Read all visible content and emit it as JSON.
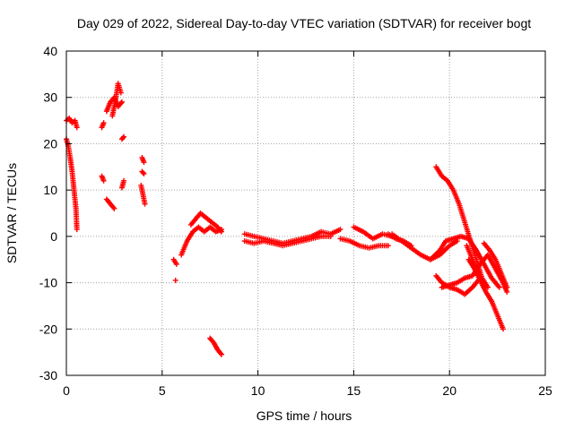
{
  "chart_data": {
    "type": "scatter",
    "title": "Day 029 of 2022, Sidereal Day-to-day VTEC variation (SDTVAR) for receiver bogt",
    "xlabel": "GPS time / hours",
    "ylabel": "SDTVAR / TECUs",
    "xlim": [
      0,
      25
    ],
    "ylim": [
      -30,
      40
    ],
    "xticks": [
      0,
      5,
      10,
      15,
      20,
      25
    ],
    "yticks": [
      -30,
      -20,
      -10,
      0,
      10,
      20,
      30,
      40
    ],
    "xtick_labels": [
      "0",
      "5",
      "10",
      "15",
      "20",
      "25"
    ],
    "ytick_labels": [
      "-30",
      "-20",
      "-10",
      "0",
      "10",
      "20",
      "30",
      "40"
    ],
    "grid": true,
    "marker": "+",
    "color": "#ff0000",
    "series": [
      {
        "name": "s01",
        "x": [
          0.0,
          0.15,
          0.3,
          0.45,
          0.55
        ],
        "y": [
          25.0,
          25.5,
          24.5,
          25.0,
          23.5
        ]
      },
      {
        "name": "s02",
        "x": [
          0.0,
          0.1,
          0.2,
          0.3,
          0.4,
          0.5,
          0.55
        ],
        "y": [
          21.0,
          19.5,
          17.0,
          14.0,
          10.0,
          6.0,
          1.5
        ]
      },
      {
        "name": "s03",
        "x": [
          1.85,
          1.95
        ],
        "y": [
          23.5,
          24.5
        ]
      },
      {
        "name": "s04",
        "x": [
          1.85,
          1.95
        ],
        "y": [
          13.0,
          12.0
        ]
      },
      {
        "name": "s05",
        "x": [
          2.1,
          2.3,
          2.5
        ],
        "y": [
          8.0,
          7.0,
          6.0
        ]
      },
      {
        "name": "s06",
        "x": [
          2.1,
          2.3,
          2.5,
          2.7,
          2.9
        ],
        "y": [
          27.0,
          29.0,
          30.0,
          28.0,
          29.0
        ]
      },
      {
        "name": "s07",
        "x": [
          2.4,
          2.55,
          2.7,
          2.85
        ],
        "y": [
          26.0,
          29.0,
          33.0,
          31.0
        ]
      },
      {
        "name": "s08",
        "x": [
          2.9,
          3.0
        ],
        "y": [
          21.0,
          21.5
        ]
      },
      {
        "name": "s09",
        "x": [
          2.9,
          3.0
        ],
        "y": [
          10.5,
          12.0
        ]
      },
      {
        "name": "s10",
        "x": [
          3.95,
          4.05
        ],
        "y": [
          17.0,
          16.0
        ]
      },
      {
        "name": "s11",
        "x": [
          3.95,
          4.05
        ],
        "y": [
          14.0,
          13.5
        ]
      },
      {
        "name": "s12",
        "x": [
          3.9,
          4.0,
          4.1
        ],
        "y": [
          11.0,
          9.0,
          7.0
        ]
      },
      {
        "name": "s13",
        "x": [
          5.6,
          5.75
        ],
        "y": [
          -5.0,
          -6.0
        ]
      },
      {
        "name": "s14",
        "x": [
          5.7
        ],
        "y": [
          -9.5
        ]
      },
      {
        "name": "s15",
        "x": [
          6.0,
          6.3,
          6.6,
          6.9,
          7.2,
          7.5,
          7.8,
          8.1
        ],
        "y": [
          -4.0,
          -1.0,
          1.0,
          2.0,
          1.0,
          2.0,
          1.0,
          1.5
        ]
      },
      {
        "name": "s16",
        "x": [
          6.5,
          6.8,
          7.0,
          7.3,
          7.6,
          7.9,
          8.1
        ],
        "y": [
          2.5,
          4.0,
          5.0,
          4.0,
          3.0,
          2.0,
          1.0
        ]
      },
      {
        "name": "s17",
        "x": [
          7.5,
          7.7,
          7.9,
          8.1
        ],
        "y": [
          -22.0,
          -23.0,
          -24.5,
          -25.5
        ]
      },
      {
        "name": "s18",
        "x": [
          9.3,
          9.8,
          10.3,
          10.8,
          11.3,
          11.8,
          12.3,
          12.8,
          13.3,
          13.8,
          14.3
        ],
        "y": [
          0.5,
          0.0,
          -0.5,
          -1.0,
          -1.5,
          -1.0,
          -0.5,
          0.0,
          1.0,
          0.5,
          1.5
        ]
      },
      {
        "name": "s19",
        "x": [
          9.3,
          9.8,
          10.3,
          10.8,
          11.3,
          11.8,
          12.3,
          12.8,
          13.3,
          13.8
        ],
        "y": [
          -1.0,
          -1.5,
          -1.0,
          -1.5,
          -2.0,
          -1.5,
          -1.0,
          -0.5,
          0.0,
          0.0
        ]
      },
      {
        "name": "s20",
        "x": [
          14.3,
          14.8,
          15.3,
          15.8,
          16.3,
          16.8
        ],
        "y": [
          -0.5,
          -1.0,
          -2.0,
          -2.5,
          -2.0,
          -2.0
        ]
      },
      {
        "name": "s21",
        "x": [
          15.0,
          15.5,
          16.0,
          16.5,
          17.0
        ],
        "y": [
          2.0,
          1.0,
          -0.5,
          0.5,
          0.0
        ]
      },
      {
        "name": "s22",
        "x": [
          17.0,
          17.5,
          18.0,
          18.5,
          19.0,
          19.5,
          20.0,
          20.4
        ],
        "y": [
          0.5,
          -1.0,
          -2.5,
          -4.0,
          -5.0,
          -4.0,
          -2.0,
          -1.0
        ]
      },
      {
        "name": "s23",
        "x": [
          16.8,
          17.2,
          17.6,
          18.0
        ],
        "y": [
          0.5,
          -0.5,
          -1.0,
          -2.0
        ]
      },
      {
        "name": "s24",
        "x": [
          19.0,
          19.5,
          19.8,
          20.2,
          20.6,
          21.0,
          21.4,
          21.8,
          22.2,
          22.6
        ],
        "y": [
          -5.0,
          -3.0,
          -1.0,
          -0.5,
          0.0,
          -0.5,
          -3.0,
          -6.0,
          -9.0,
          -11.0
        ]
      },
      {
        "name": "s25",
        "x": [
          19.3,
          19.6,
          19.9,
          20.2,
          20.5,
          20.8,
          21.1,
          21.4,
          21.7,
          22.0
        ],
        "y": [
          15.0,
          13.0,
          12.0,
          10.0,
          7.0,
          3.0,
          -1.0,
          -5.0,
          -9.0,
          -11.0
        ]
      },
      {
        "name": "s26",
        "x": [
          19.3,
          19.6,
          20.0,
          20.4,
          20.8,
          21.2,
          21.6
        ],
        "y": [
          -8.5,
          -10.0,
          -11.0,
          -11.5,
          -12.5,
          -11.0,
          -9.0
        ]
      },
      {
        "name": "s27",
        "x": [
          19.6,
          20.0,
          20.4,
          20.8,
          21.2,
          21.6,
          22.0,
          22.4,
          22.8,
          23.0
        ],
        "y": [
          -11.0,
          -10.5,
          -10.0,
          -9.0,
          -8.5,
          -6.0,
          -4.0,
          -7.0,
          -10.0,
          -12.0
        ]
      },
      {
        "name": "s28",
        "x": [
          21.0,
          21.3,
          21.6,
          21.9,
          22.2,
          22.5,
          22.8
        ],
        "y": [
          -5.0,
          -7.0,
          -9.5,
          -12.0,
          -14.0,
          -17.0,
          -20.0
        ]
      },
      {
        "name": "s29",
        "x": [
          21.8,
          22.1,
          22.4,
          22.7,
          23.0
        ],
        "y": [
          -1.5,
          -3.0,
          -5.0,
          -8.0,
          -11.0
        ]
      },
      {
        "name": "s30",
        "x": [
          20.9,
          21.2,
          21.5
        ],
        "y": [
          -2.0,
          -5.0,
          -8.0
        ]
      }
    ]
  }
}
